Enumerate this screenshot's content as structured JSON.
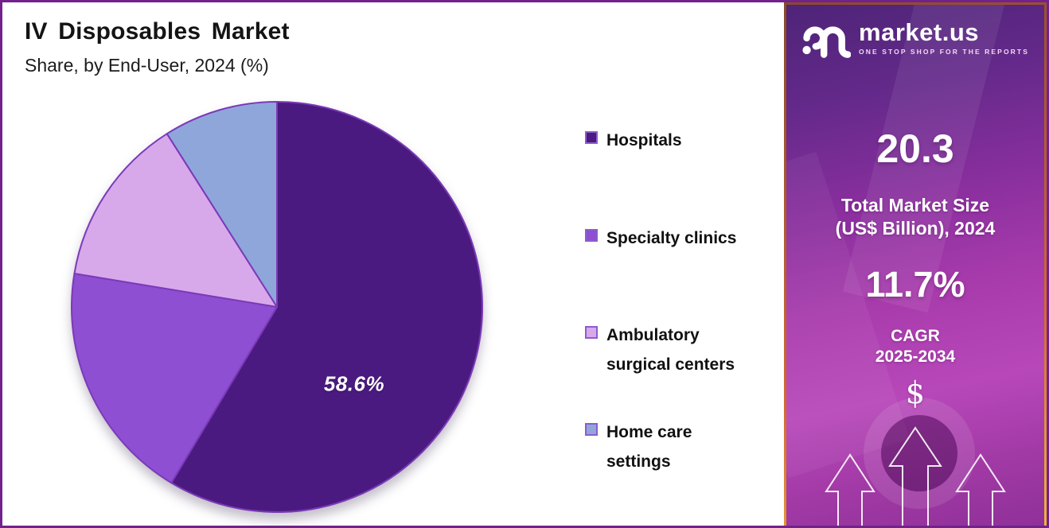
{
  "page": {
    "border_color": "#72218D",
    "background": "#FFFFFF"
  },
  "header": {
    "title": "IV Disposables Market",
    "subtitle": "Share, by End-User, 2024 (%)"
  },
  "chart_data": {
    "type": "pie",
    "title": "IV Disposables Market",
    "subtitle": "Share, by End-User, 2024 (%)",
    "unit": "% share",
    "start_angle_deg": 0,
    "direction": "clockwise",
    "legend_position": "right",
    "labels_shown_on_chart": [
      "58.6%"
    ],
    "slice_stroke": "#7B3AB8",
    "slices": [
      {
        "label": "Hospitals",
        "value": 58.6,
        "data_label": "58.6%",
        "color": "#4B1A80"
      },
      {
        "label": "Specialty clinics",
        "value": 19.0,
        "data_label": "",
        "color": "#8E4FD2"
      },
      {
        "label": "Ambulatory surgical centers",
        "value": 13.4,
        "data_label": "",
        "color": "#D7A9EA"
      },
      {
        "label": "Home care settings",
        "value": 9.0,
        "data_label": "",
        "color": "#8FA6DB"
      }
    ]
  },
  "side_panel": {
    "brand": {
      "name": "market.us",
      "tagline": "ONE STOP SHOP FOR THE REPORTS",
      "logo_icon": "market-us-logo-icon"
    },
    "market_size": {
      "value": "20.3",
      "label_line1": "Total Market Size",
      "label_line2": "(US$ Billion), 2024"
    },
    "cagr": {
      "value": "11.7%",
      "label_line1": "CAGR",
      "label_line2": "2025-2034"
    },
    "dollar_symbol": "$",
    "icons": [
      "dollar-icon",
      "up-arrow-icon"
    ],
    "colors": {
      "gradient_top": "#4E2478",
      "gradient_mid": "#A83BAC",
      "gradient_bottom": "#8F3098",
      "border": "#D4692F"
    }
  }
}
